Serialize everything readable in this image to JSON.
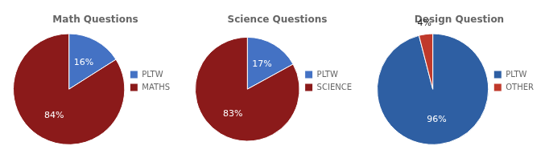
{
  "chart_data": [
    {
      "type": "pie",
      "title": "Math Questions",
      "categories": [
        "PLTW",
        "MATHS"
      ],
      "values": [
        16,
        84
      ],
      "value_labels": [
        "16%",
        "84%"
      ],
      "colors": [
        "#4472C4",
        "#8B1A1A"
      ],
      "data_labels": true,
      "legend": "right"
    },
    {
      "type": "pie",
      "title": "Science Questions",
      "categories": [
        "PLTW",
        "SCIENCE"
      ],
      "values": [
        17,
        83
      ],
      "value_labels": [
        "17%",
        "83%"
      ],
      "colors": [
        "#4472C4",
        "#8B1A1A"
      ],
      "data_labels": true,
      "legend": "right"
    },
    {
      "type": "pie",
      "title": "Design Question",
      "categories": [
        "PLTW",
        "OTHER"
      ],
      "values": [
        96,
        4
      ],
      "value_labels": [
        "96%",
        "4%"
      ],
      "colors": [
        "#2E5FA3",
        "#C0392B"
      ],
      "data_labels": true,
      "legend": "right"
    }
  ]
}
